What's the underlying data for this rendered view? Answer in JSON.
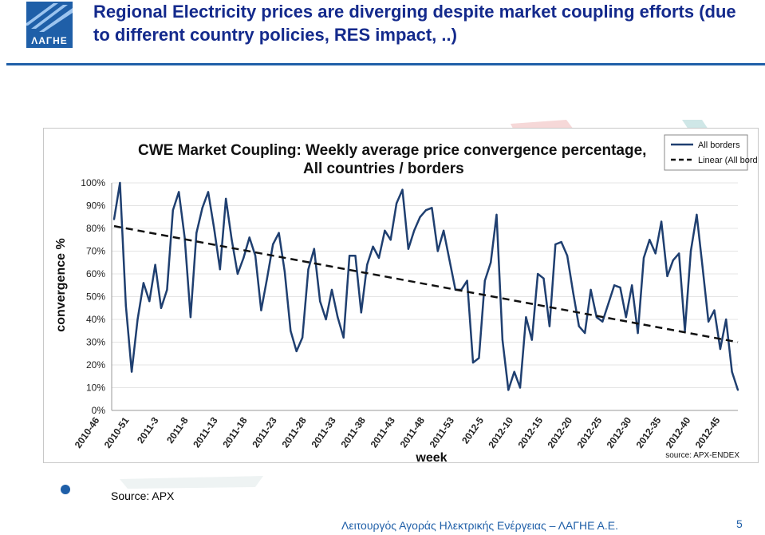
{
  "header": {
    "logo_text": "ΛΑΓΗΕ",
    "title": "Regional Electricity prices are diverging despite market coupling efforts (due to different country policies, RES impact, ..)"
  },
  "colors": {
    "accent": "#1f5fa8",
    "title": "#142a8c",
    "series": "#1f3f70"
  },
  "chart_data": {
    "type": "line",
    "title_line1": "CWE Market Coupling: Weekly average price convergence percentage,",
    "title_line2": "All countries / borders",
    "xlabel": "week",
    "ylabel": "convergence %",
    "source_note": "source: APX-ENDEX",
    "ylim": [
      0,
      100
    ],
    "yticks": [
      "0%",
      "10%",
      "20%",
      "30%",
      "40%",
      "50%",
      "60%",
      "70%",
      "80%",
      "90%",
      "100%"
    ],
    "ytick_values": [
      0,
      10,
      20,
      30,
      40,
      50,
      60,
      70,
      80,
      90,
      100
    ],
    "xticks": [
      "2010-46",
      "2010-51",
      "2011-3",
      "2011-8",
      "2011-13",
      "2011-18",
      "2011-23",
      "2011-28",
      "2011-33",
      "2011-38",
      "2011-43",
      "2011-48",
      "2011-53",
      "2012-5",
      "2012-10",
      "2012-15",
      "2012-20",
      "2012-25",
      "2012-30",
      "2012-35",
      "2012-40",
      "2012-45"
    ],
    "legend": [
      "All borders",
      "Linear (All borders)"
    ],
    "legend_position": "top-right",
    "series": [
      {
        "name": "All borders",
        "values": [
          84,
          100,
          46,
          17,
          40,
          56,
          48,
          64,
          45,
          53,
          88,
          96,
          76,
          41,
          78,
          89,
          96,
          80,
          62,
          93,
          75,
          60,
          67,
          76,
          68,
          44,
          58,
          73,
          78,
          61,
          35,
          26,
          32,
          62,
          71,
          48,
          40,
          53,
          41,
          32,
          68,
          68,
          43,
          64,
          72,
          67,
          79,
          75,
          91,
          97,
          71,
          79,
          85,
          88,
          89,
          70,
          79,
          66,
          53,
          53,
          57,
          21,
          23,
          57,
          65,
          86,
          31,
          9,
          17,
          10,
          41,
          31,
          60,
          58,
          37,
          73,
          74,
          68,
          52,
          37,
          34,
          53,
          41,
          39,
          47,
          55,
          54,
          41,
          55,
          34,
          67,
          75,
          69,
          83,
          59,
          66,
          69,
          35,
          70,
          86,
          63,
          39,
          44,
          27,
          40,
          17,
          9
        ]
      },
      {
        "name": "Linear (All borders)",
        "start": 81,
        "end": 30
      }
    ]
  },
  "source_label": "Source: APX",
  "footer_text": "Λειτουργός Αγοράς Ηλεκτρικής Ενέργειας – ΛΑΓΗΕ Α.Ε.",
  "page_number": "5"
}
